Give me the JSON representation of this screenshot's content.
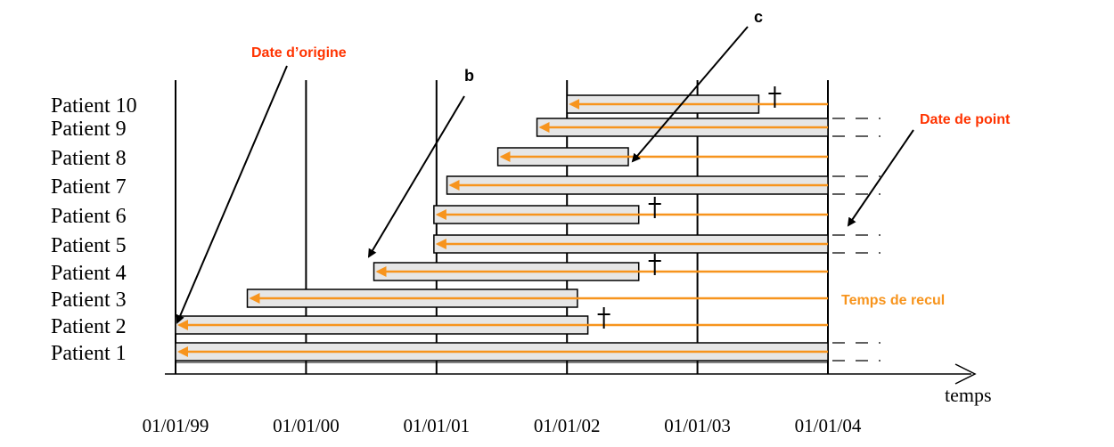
{
  "chart_data": {
    "type": "gantt",
    "x_ticks": [
      "01/01/99",
      "01/01/00",
      "01/01/01",
      "01/01/02",
      "01/01/03",
      "01/01/04"
    ],
    "xlabel": "temps",
    "patients": [
      {
        "label": "Patient 10",
        "start": 2002.0,
        "end": 2003.47,
        "status": "deces"
      },
      {
        "label": "Patient 9",
        "start": 2001.77,
        "end": 2004.0,
        "status": "en vie"
      },
      {
        "label": "Patient 8",
        "start": 2001.47,
        "end": 2002.47,
        "status": "perdu de vue"
      },
      {
        "label": "Patient 7",
        "start": 2001.08,
        "end": 2004.0,
        "status": "en vie"
      },
      {
        "label": "Patient 6",
        "start": 2000.98,
        "end": 2002.55,
        "status": "deces"
      },
      {
        "label": "Patient 5",
        "start": 2000.98,
        "end": 2004.0,
        "status": "en vie"
      },
      {
        "label": "Patient 4",
        "start": 2000.52,
        "end": 2002.55,
        "status": "deces"
      },
      {
        "label": "Patient 3",
        "start": 1999.55,
        "end": 2002.08,
        "status": "perdu de vue"
      },
      {
        "label": "Patient 2",
        "start": 1999.0,
        "end": 2002.16,
        "status": "deces"
      },
      {
        "label": "Patient 1",
        "start": 1999.0,
        "end": 2004.0,
        "status": "en vie"
      }
    ],
    "annotations": {
      "date_origine": "Date d’origine",
      "b": "b",
      "c": "c",
      "date_de_point": "Date de point",
      "temps_de_recul": "Temps de recul"
    },
    "colors": {
      "arrow": "#f7941d",
      "bar_fill": "#e6e6e6",
      "red_label": "#ff3300",
      "orange_label": "#f7941d",
      "line": "#000000"
    }
  }
}
